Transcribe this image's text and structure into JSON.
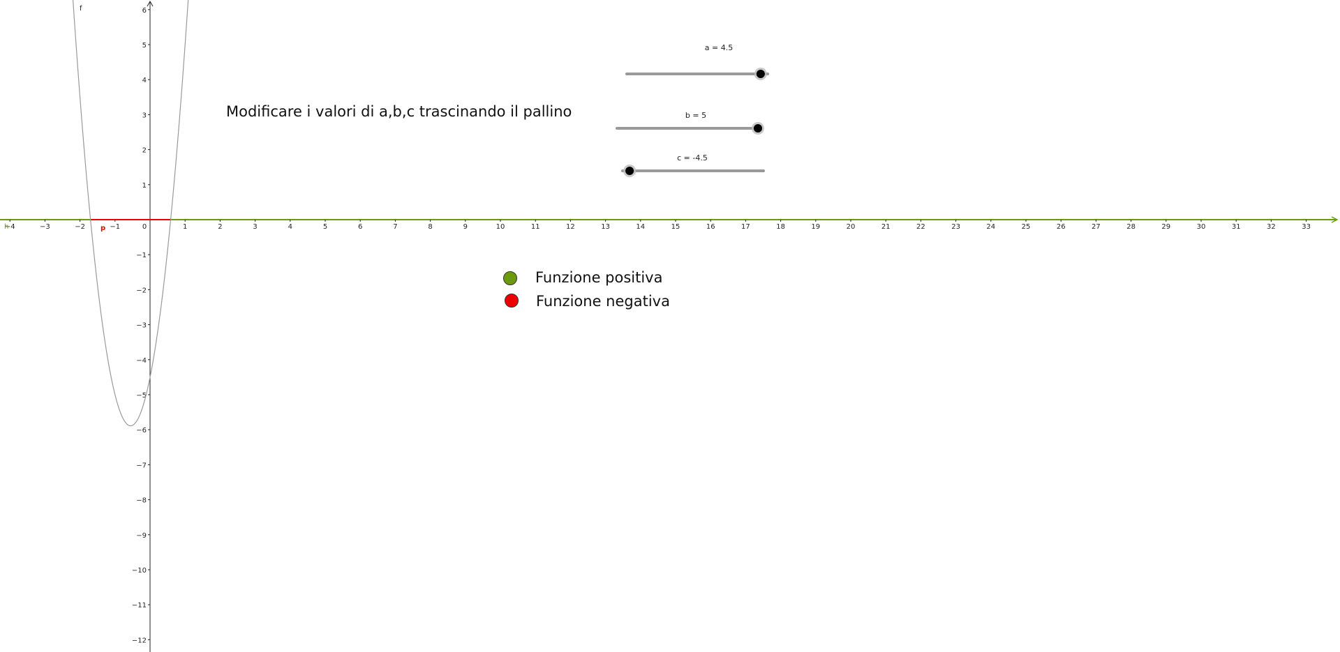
{
  "instruction_text": "Modificare i valori di a,b,c trascinando il pallino",
  "function_label": "f",
  "positive_set_label": "h",
  "negative_set_label": "p",
  "sliders": [
    {
      "name": "a",
      "label": "a = 4.5",
      "value": 4.5
    },
    {
      "name": "b",
      "label": "b = 5",
      "value": 5
    },
    {
      "name": "c",
      "label": "c = -4.5",
      "value": -4.5
    }
  ],
  "legend": [
    {
      "label": "Funzione positiva",
      "color": "#6b9a0e"
    },
    {
      "label": "Funzione negativa",
      "color": "#ee0000"
    }
  ],
  "axes": {
    "x_ticks": [
      -4,
      -3,
      -2,
      -1,
      0,
      1,
      2,
      3,
      4,
      5,
      6,
      7,
      8,
      9,
      10,
      11,
      12,
      13,
      14,
      15,
      16,
      17,
      18,
      19,
      20,
      21,
      22,
      23,
      24,
      25,
      26,
      27,
      28,
      29,
      30,
      31,
      32,
      33
    ],
    "y_ticks": [
      6,
      5,
      4,
      3,
      2,
      1,
      -1,
      -2,
      -3,
      -4,
      -5,
      -6,
      -7,
      -8,
      -9,
      -10,
      -11,
      -12
    ]
  },
  "colors": {
    "positive": "#6b9a0e",
    "negative": "#ee0000",
    "curve": "#999999",
    "axis": "#222222",
    "slider_track": "#999999",
    "slider_knob": "#000000"
  }
}
